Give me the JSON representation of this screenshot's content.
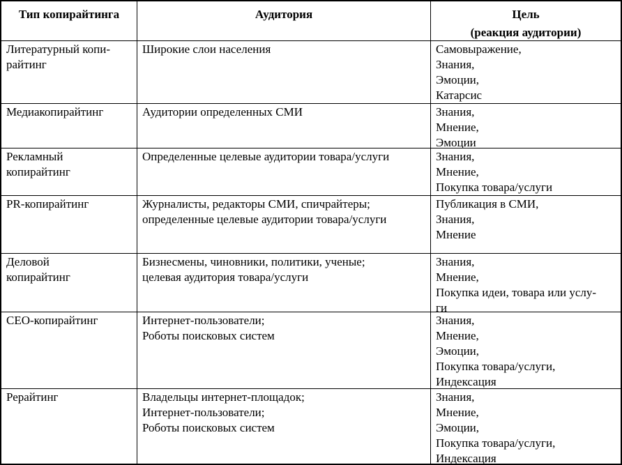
{
  "table": {
    "columns": [
      {
        "label": "Тип копирайтинга"
      },
      {
        "label": "Аудитория"
      },
      {
        "label": "Цель\n(реакция аудитории)"
      }
    ],
    "rows": [
      {
        "type": "Литературный копи-\nрайтинг",
        "audience": "Широкие слои населения",
        "goal": "Самовыражение,\nЗнания,\nЭмоции,\nКатарсис"
      },
      {
        "type": "Медиакопирайтинг",
        "audience": "Аудитории определенных СМИ",
        "goal": "Знания,\nМнение,\nЭмоции"
      },
      {
        "type": "Рекламный\nкопирайтинг",
        "audience": "Определенные целевые аудитории товара/услуги",
        "goal": "Знания,\nМнение,\nПокупка товара/услуги"
      },
      {
        "type": "PR-копирайтинг",
        "audience": "Журналисты, редакторы СМИ, спичрайтеры;\nопределенные целевые аудитории товара/услуги",
        "goal": "Публикация в СМИ,\nЗнания,\nМнение"
      },
      {
        "type": "Деловой\nкопирайтинг",
        "audience": "Бизнесмены, чиновники, политики, ученые;\nцелевая аудитория товара/услуги",
        "goal": "Знания,\nМнение,\nПокупка идеи, товара или услу-\nги"
      },
      {
        "type": "СЕО-копирайтинг",
        "audience": "Интернет-пользователи;\nРоботы поисковых систем",
        "goal": "Знания,\nМнение,\nЭмоции,\nПокупка товара/услуги,\nИндексация"
      },
      {
        "type": "Рерайтинг",
        "audience": "Владельцы интернет-площадок;\nИнтернет-пользователи;\nРоботы поисковых систем",
        "goal": "Знания,\nМнение,\nЭмоции,\nПокупка товара/услуги,\nИндексация"
      }
    ]
  },
  "colors": {
    "border": "#000000",
    "text": "#000000",
    "background": "#ffffff"
  }
}
